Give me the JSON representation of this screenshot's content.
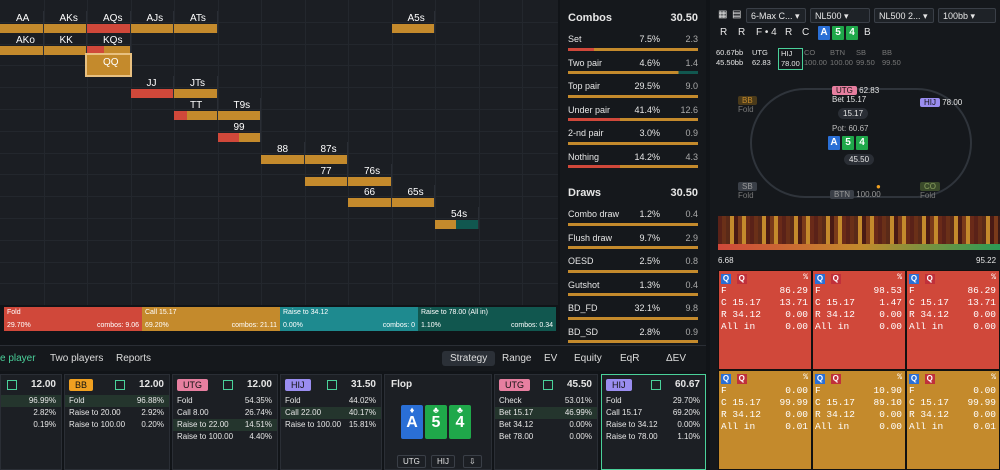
{
  "grid": {
    "cells": [
      {
        "label": "AA"
      },
      {
        "label": "AKs"
      },
      {
        "label": "AQs"
      },
      {
        "label": "AJs"
      },
      {
        "label": "ATs"
      },
      {
        "label": "A5s"
      },
      {
        "label": "AKo"
      },
      {
        "label": "KK"
      },
      {
        "label": "KQs"
      },
      {
        "label": "QQ"
      },
      {
        "label": "JJ"
      },
      {
        "label": "JTs"
      },
      {
        "label": "TT"
      },
      {
        "label": "T9s"
      },
      {
        "label": "99"
      },
      {
        "label": "88"
      },
      {
        "label": "87s"
      },
      {
        "label": "77"
      },
      {
        "label": "76s"
      },
      {
        "label": "66"
      },
      {
        "label": "65s"
      },
      {
        "label": "54s"
      }
    ]
  },
  "strip": [
    {
      "name": "Fold",
      "pct": "29.70%",
      "combos": "combos: 9.06",
      "color": "#d0483a"
    },
    {
      "name": "Call 15.17",
      "pct": "69.20%",
      "combos": "combos: 21.11",
      "color": "#c48a2c"
    },
    {
      "name": "Raise to 34.12",
      "pct": "0.00%",
      "combos": "combos: 0",
      "color": "#1e8a8f"
    },
    {
      "name": "Raise to 78.00 (All in)",
      "pct": "1.10%",
      "combos": "combos: 0.34",
      "color": "#11574f"
    }
  ],
  "combos": {
    "title": "Combos",
    "total": "30.50",
    "rows": [
      {
        "name": "Set",
        "pct": "7.5%",
        "val": "2.3"
      },
      {
        "name": "Two pair",
        "pct": "4.6%",
        "val": "1.4"
      },
      {
        "name": "Top pair",
        "pct": "29.5%",
        "val": "9.0"
      },
      {
        "name": "Under pair",
        "pct": "41.4%",
        "val": "12.6"
      },
      {
        "name": "2-nd pair",
        "pct": "3.0%",
        "val": "0.9"
      },
      {
        "name": "Nothing",
        "pct": "14.2%",
        "val": "4.3"
      }
    ]
  },
  "draws": {
    "title": "Draws",
    "total": "30.50",
    "rows": [
      {
        "name": "Combo draw",
        "pct": "1.2%",
        "val": "0.4"
      },
      {
        "name": "Flush draw",
        "pct": "9.7%",
        "val": "2.9"
      },
      {
        "name": "OESD",
        "pct": "2.5%",
        "val": "0.8"
      },
      {
        "name": "Gutshot",
        "pct": "1.3%",
        "val": "0.4"
      },
      {
        "name": "BD_FD",
        "pct": "32.1%",
        "val": "9.8"
      },
      {
        "name": "BD_SD",
        "pct": "2.8%",
        "val": "0.9"
      }
    ]
  },
  "tabs": {
    "left": [
      "e player",
      "Two players",
      "Reports"
    ],
    "right": [
      "Strategy",
      "Range",
      "EV",
      "Equity",
      "EqR",
      "ΔEV"
    ]
  },
  "players": [
    {
      "pos": "",
      "stack": "12.00",
      "color": "",
      "rows": [
        {
          "l": "",
          "r": "96.99%"
        },
        {
          "l": "",
          "r": "2.82%"
        },
        {
          "l": "",
          "r": "0.19%"
        }
      ]
    },
    {
      "pos": "BB",
      "stack": "12.00",
      "color": "#f0a020",
      "rows": [
        {
          "l": "Fold",
          "r": "96.88%"
        },
        {
          "l": "Raise to 20.00",
          "r": "2.92%"
        },
        {
          "l": "Raise to 100.00",
          "r": "0.20%"
        }
      ]
    },
    {
      "pos": "UTG",
      "stack": "12.00",
      "color": "#e77fa0",
      "rows": [
        {
          "l": "Fold",
          "r": "54.35%"
        },
        {
          "l": "Call 8.00",
          "r": "26.74%"
        },
        {
          "l": "Raise to 22.00",
          "r": "14.51%"
        },
        {
          "l": "Raise to 100.00",
          "r": "4.40%"
        }
      ]
    },
    {
      "pos": "HIJ",
      "stack": "31.50",
      "color": "#9a8df0",
      "rows": [
        {
          "l": "Fold",
          "r": "44.02%"
        },
        {
          "l": "Call 22.00",
          "r": "40.17%"
        },
        {
          "l": "Raise to 100.00",
          "r": "15.81%"
        }
      ]
    }
  ],
  "flop": {
    "title": "Flop",
    "cards": [
      {
        "rank": "A",
        "suit": "♦",
        "color": "#2a6fd6"
      },
      {
        "rank": "5",
        "suit": "♣",
        "color": "#1fa84a"
      },
      {
        "rank": "4",
        "suit": "♣",
        "color": "#1fa84a"
      }
    ],
    "buttons": [
      "UTG",
      "HIJ",
      "⇩"
    ]
  },
  "street_players": [
    {
      "pos": "UTG",
      "stack": "45.50",
      "color": "#e77fa0",
      "rows": [
        {
          "l": "Check",
          "r": "53.01%"
        },
        {
          "l": "Bet 15.17",
          "r": "46.99%"
        },
        {
          "l": "Bet 34.12",
          "r": "0.00%"
        },
        {
          "l": "Bet 78.00",
          "r": "0.00%"
        }
      ]
    },
    {
      "pos": "HIJ",
      "stack": "60.67",
      "color": "#9a8df0",
      "rows": [
        {
          "l": "Fold",
          "r": "29.70%"
        },
        {
          "l": "Call 15.17",
          "r": "69.20%"
        },
        {
          "l": "Raise to 34.12",
          "r": "0.00%"
        },
        {
          "l": "Raise to 78.00",
          "r": "1.10%"
        }
      ]
    }
  ],
  "right": {
    "dropdowns": [
      "6-Max C...",
      "NL500",
      "NL500 2...",
      "100bb"
    ],
    "actions": [
      "R",
      "R",
      "F • 4",
      "R",
      "C"
    ],
    "board": [
      "A",
      "5",
      "4"
    ],
    "stacks_row": [
      {
        "label": "60.67bb",
        "sub": "45.50bb"
      },
      {
        "label": "UTG",
        "sub": "62.83"
      },
      {
        "label": "HIJ",
        "sub": "78.00"
      },
      {
        "label": "CO",
        "sub": "100.00"
      },
      {
        "label": "BTN",
        "sub": "100.00"
      },
      {
        "label": "SB",
        "sub": "99.50"
      },
      {
        "label": "BB",
        "sub": "99.50"
      }
    ],
    "seats": {
      "bb": {
        "name": "BB",
        "sub": "Fold"
      },
      "utg": {
        "name": "UTG",
        "stack": "62.83",
        "bet": "Bet 15.17",
        "chip": "15.17"
      },
      "hij": {
        "name": "HIJ",
        "stack": "78.00"
      },
      "sb": {
        "name": "SB",
        "sub": "Fold"
      },
      "btn": {
        "name": "BTN",
        "stack": "100.00"
      },
      "co": {
        "name": "CO",
        "sub": "Fold"
      }
    },
    "pot": "Pot: 60.67",
    "pot_chip": "45.50",
    "scale_min": "6.68",
    "scale_max": "95.22",
    "matrix": [
      {
        "cards": [
          "Q",
          "Q"
        ],
        "F": "86.29",
        "C": "15.17",
        "Cv": "13.71",
        "R": "34.12",
        "Rv": "0.00",
        "All": "0.00",
        "bg": "#d0483a"
      },
      {
        "cards": [
          "Q",
          "Q"
        ],
        "F": "98.53",
        "C": "15.17",
        "Cv": "1.47",
        "R": "34.12",
        "Rv": "0.00",
        "All": "0.00",
        "bg": "#d0483a"
      },
      {
        "cards": [
          "Q",
          "Q"
        ],
        "F": "86.29",
        "C": "15.17",
        "Cv": "13.71",
        "R": "34.12",
        "Rv": "0.00",
        "All": "0.00",
        "bg": "#d0483a"
      },
      {
        "cards": [
          "Q",
          "Q"
        ],
        "F": "0.00",
        "C": "15.17",
        "Cv": "99.99",
        "R": "34.12",
        "Rv": "0.00",
        "All": "0.01",
        "bg": "#c48a2c"
      },
      {
        "cards": [
          "Q",
          "Q"
        ],
        "F": "10.90",
        "C": "15.17",
        "Cv": "89.10",
        "R": "34.12",
        "Rv": "0.00",
        "All": "0.00",
        "bg": "#c48a2c"
      },
      {
        "cards": [
          "Q",
          "Q"
        ],
        "F": "0.00",
        "C": "15.17",
        "Cv": "99.99",
        "R": "34.12",
        "Rv": "0.00",
        "All": "0.01",
        "bg": "#c48a2c"
      }
    ]
  }
}
